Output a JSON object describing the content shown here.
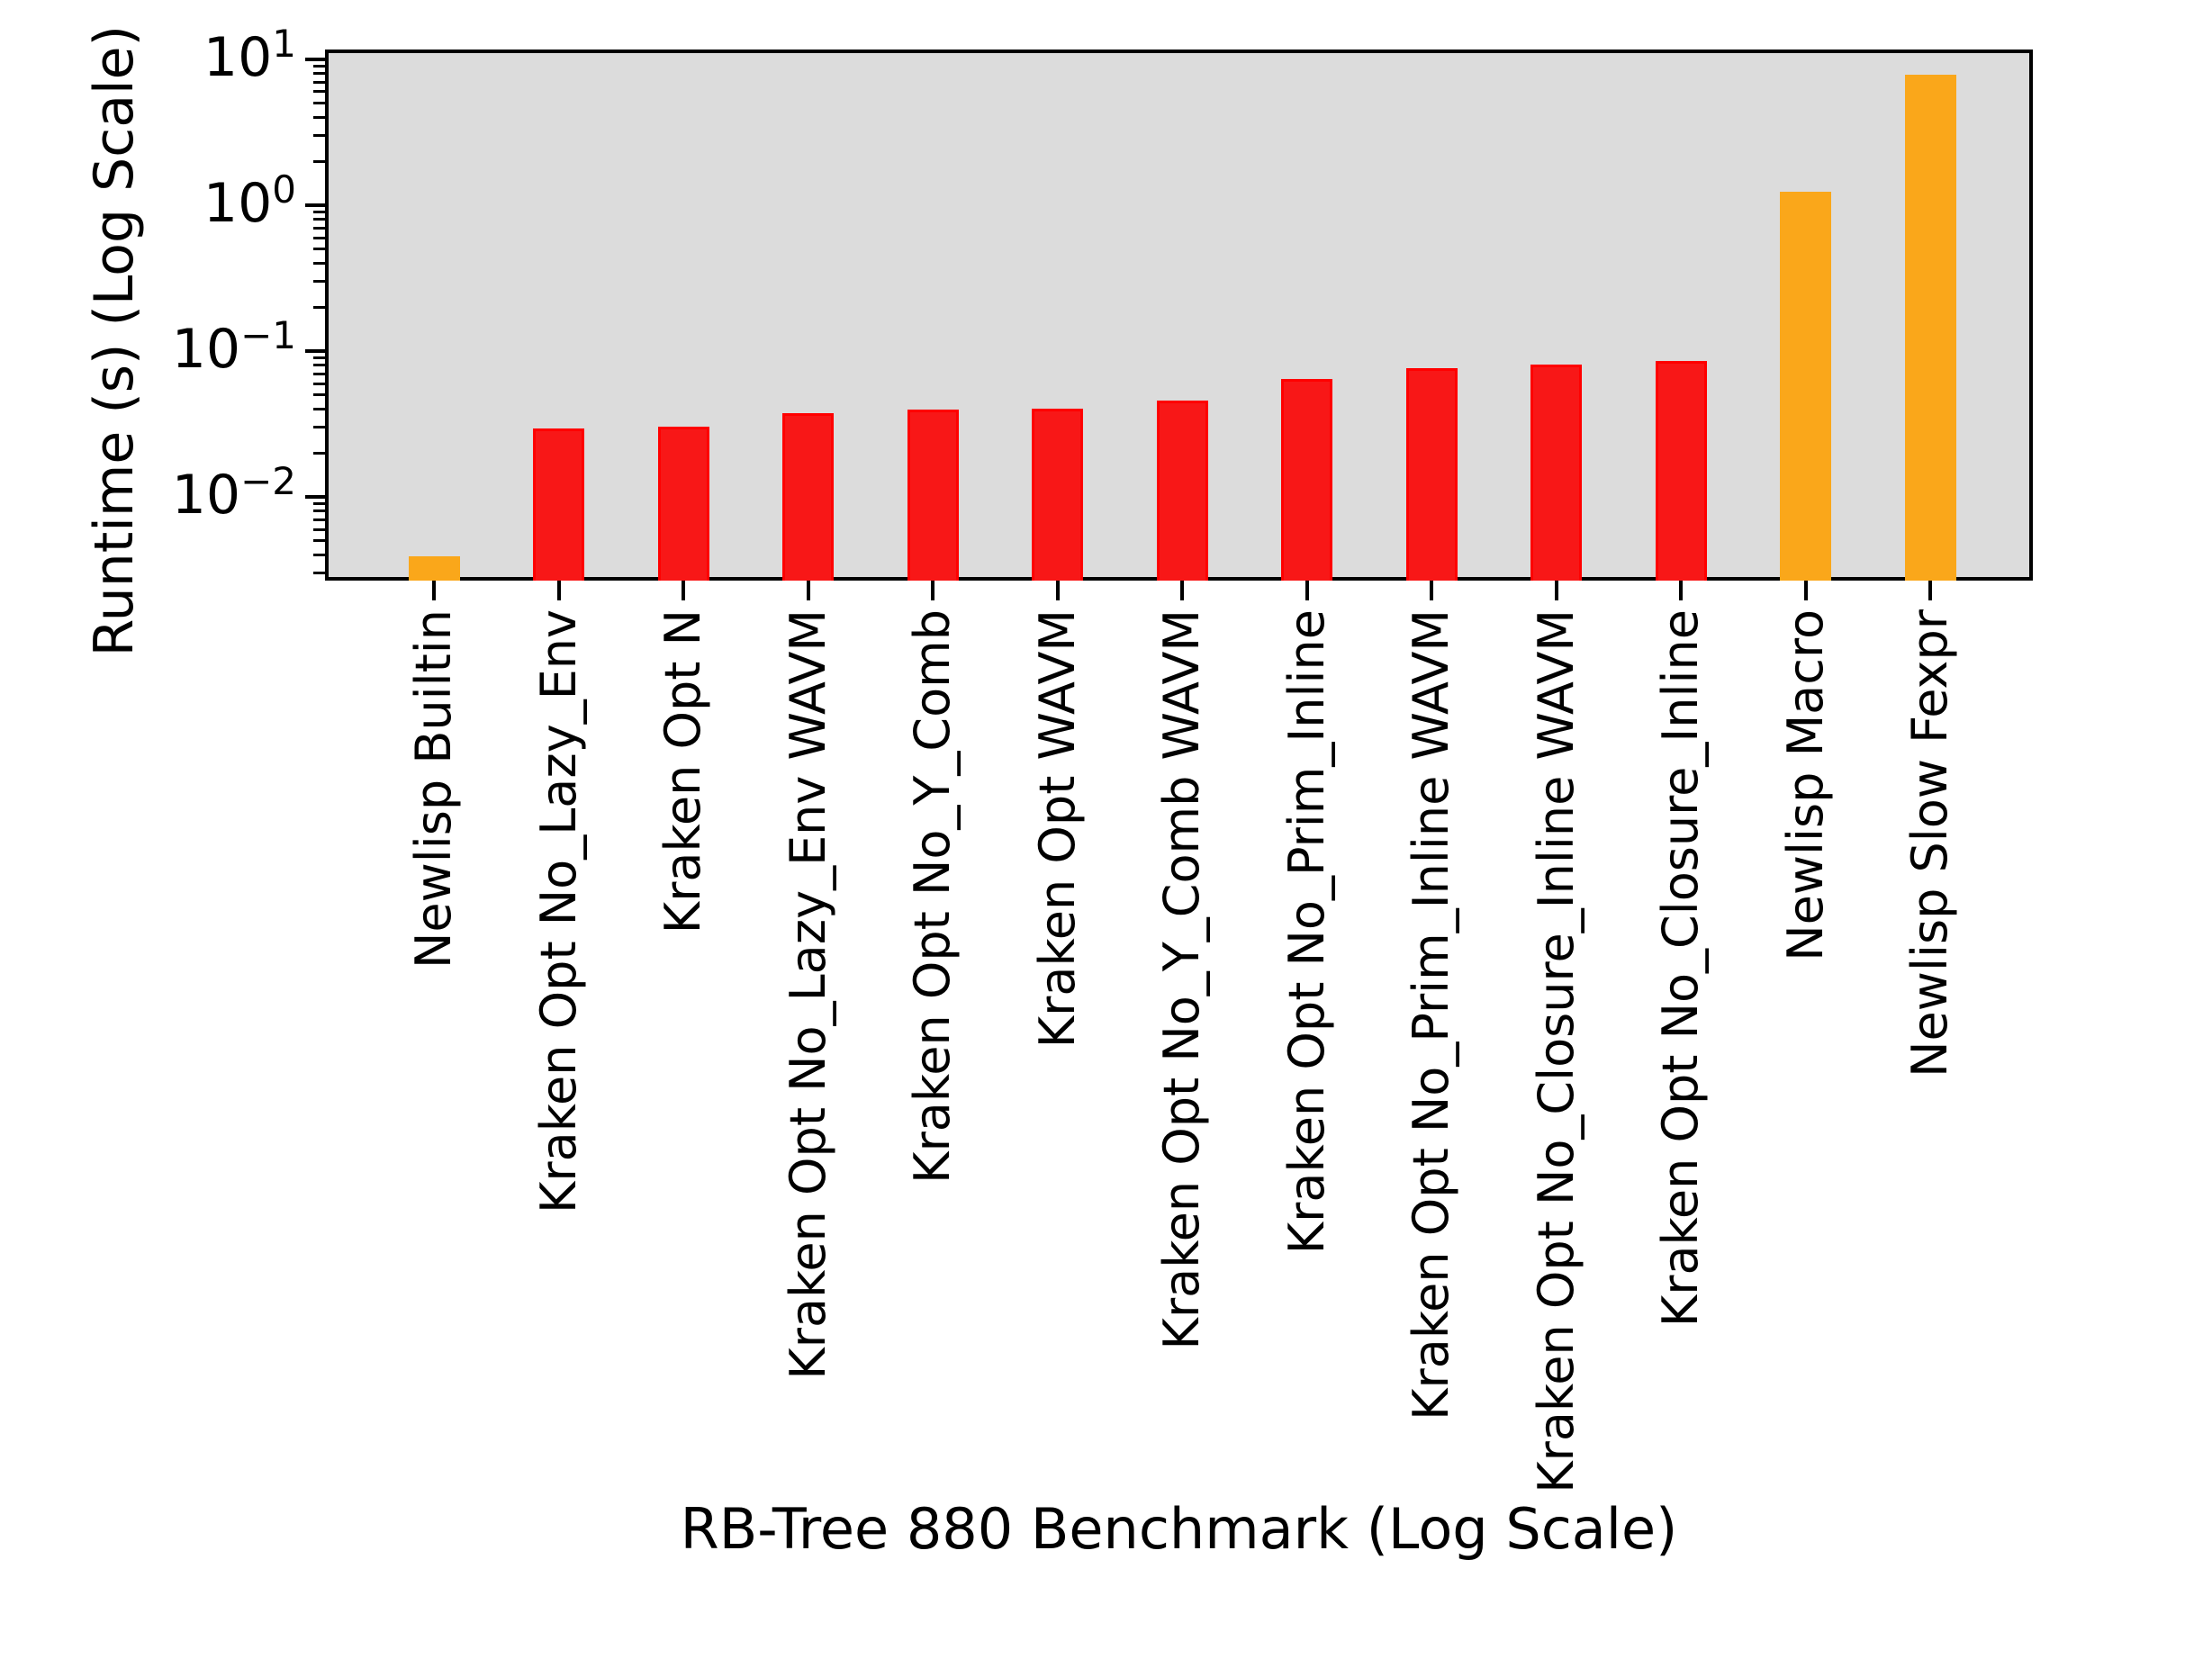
{
  "chart_data": {
    "type": "bar",
    "title": "",
    "xlabel": "RB-Tree 880 Benchmark (Log Scale)",
    "ylabel": "Runtime (s) (Log Scale)",
    "yscale": "log",
    "ylim": [
      0.00267,
      11.7
    ],
    "grid": false,
    "plot_background": "#DCDCDC",
    "figure_background": "#FFFFFF",
    "legend": {
      "position": "upper right",
      "entries": [],
      "empty_box": true
    },
    "ytick_exponents": [
      1,
      0,
      -1,
      -2
    ],
    "ytick_labels": [
      "10^1",
      "10^0",
      "10^-1",
      "10^-2"
    ],
    "categories": [
      "Newlisp Builtin",
      "Kraken Opt No_Lazy_Env",
      "Kraken Opt N",
      "Kraken Opt No_Lazy_Env WAVM",
      "Kraken Opt No_Y_Comb",
      "Kraken Opt WAVM",
      "Kraken Opt No_Y_Comb WAVM",
      "Kraken Opt No_Prim_Inline",
      "Kraken Opt No_Prim_Inline WAVM",
      "Kraken Opt No_Closure_Inline WAVM",
      "Kraken Opt No_Closure_Inline",
      "Newlisp Macro",
      "Newlisp Slow Fexpr"
    ],
    "values": [
      0.0039,
      0.0295,
      0.0305,
      0.0375,
      0.0395,
      0.0405,
      0.046,
      0.0645,
      0.0765,
      0.0805,
      0.0855,
      1.24,
      7.85
    ],
    "bar_colors": [
      "#FAA71A",
      "#F81717",
      "#F81717",
      "#F81717",
      "#F81717",
      "#F81717",
      "#F81717",
      "#F81717",
      "#F81717",
      "#F81717",
      "#F81717",
      "#FAA71A",
      "#FAA71A"
    ],
    "bar_edge_colors": [
      "#FAA71A",
      "#FF0000",
      "#FF0000",
      "#FF0000",
      "#FF0000",
      "#FF0000",
      "#FF0000",
      "#FF0000",
      "#FF0000",
      "#FF0000",
      "#FF0000",
      "#FAA71A",
      "#FAA71A"
    ],
    "colors": {
      "red_bar": "#F81717",
      "red_bar_edge": "#FF0000",
      "orange_bar": "#FAA71A",
      "axis": "#000000"
    }
  }
}
